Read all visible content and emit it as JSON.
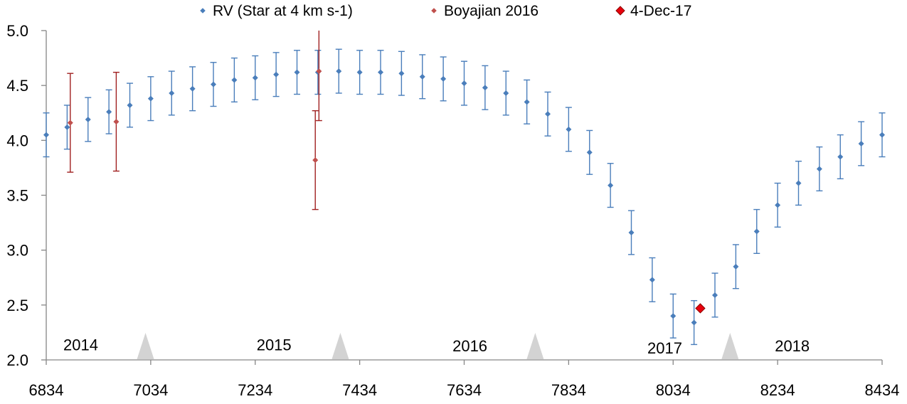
{
  "chart_data": {
    "type": "scatter",
    "title": "",
    "xlabel": "",
    "ylabel": "",
    "xlim": [
      6834,
      8434
    ],
    "ylim": [
      2.0,
      5.0
    ],
    "x_ticks": [
      6834,
      7034,
      7234,
      7434,
      7634,
      7834,
      8034,
      8234,
      8434
    ],
    "y_ticks": [
      "2.0",
      "2.5",
      "3.0",
      "3.5",
      "4.0",
      "4.5",
      "5.0"
    ],
    "grid": false,
    "legend_position": "top",
    "year_labels": [
      {
        "text": "2014",
        "x": 6900,
        "y": 2.14
      },
      {
        "text": "2015",
        "x": 7270,
        "y": 2.14
      },
      {
        "text": "2016",
        "x": 7645,
        "y": 2.13
      },
      {
        "text": "2017",
        "x": 8018,
        "y": 2.11
      },
      {
        "text": "2018",
        "x": 8262,
        "y": 2.13
      }
    ],
    "year_markers": [
      7024,
      7397,
      7770,
      8143
    ],
    "marker_color": "#d3d3d3",
    "series": [
      {
        "name": "RV (Star at 4 km s-1)",
        "color": "#4a7ebb",
        "errbar_color": "#4a7ebb",
        "marker": "diamond-small",
        "error": 0.2,
        "points": [
          [
            6834,
            4.05
          ],
          [
            6874,
            4.12
          ],
          [
            6914,
            4.19
          ],
          [
            6954,
            4.26
          ],
          [
            6994,
            4.32
          ],
          [
            7034,
            4.38
          ],
          [
            7074,
            4.43
          ],
          [
            7114,
            4.47
          ],
          [
            7154,
            4.51
          ],
          [
            7194,
            4.55
          ],
          [
            7234,
            4.57
          ],
          [
            7274,
            4.6
          ],
          [
            7314,
            4.62
          ],
          [
            7354,
            4.62
          ],
          [
            7394,
            4.63
          ],
          [
            7434,
            4.62
          ],
          [
            7474,
            4.62
          ],
          [
            7514,
            4.61
          ],
          [
            7554,
            4.58
          ],
          [
            7594,
            4.56
          ],
          [
            7634,
            4.52
          ],
          [
            7674,
            4.48
          ],
          [
            7714,
            4.43
          ],
          [
            7754,
            4.35
          ],
          [
            7794,
            4.24
          ],
          [
            7834,
            4.1
          ],
          [
            7874,
            3.89
          ],
          [
            7914,
            3.59
          ],
          [
            7954,
            3.16
          ],
          [
            7994,
            2.73
          ],
          [
            8034,
            2.4
          ],
          [
            8074,
            2.34
          ],
          [
            8114,
            2.59
          ],
          [
            8154,
            2.85
          ],
          [
            8194,
            3.17
          ],
          [
            8234,
            3.41
          ],
          [
            8274,
            3.61
          ],
          [
            8314,
            3.74
          ],
          [
            8354,
            3.85
          ],
          [
            8394,
            3.97
          ],
          [
            8434,
            4.05
          ]
        ]
      },
      {
        "name": "Boyajian 2016",
        "color": "#c0504d",
        "errbar_color": "#a02020",
        "marker": "diamond-small",
        "points": [
          [
            6880,
            4.16,
            0.45
          ],
          [
            6968,
            4.17,
            0.45
          ],
          [
            7349,
            3.82,
            0.45
          ],
          [
            7356,
            4.63,
            0.45
          ]
        ]
      },
      {
        "name": "4-Dec-17",
        "color": "#e8000d",
        "stroke": "#8b0000",
        "marker": "diamond-large",
        "points": [
          [
            8086,
            2.47
          ]
        ]
      }
    ]
  }
}
